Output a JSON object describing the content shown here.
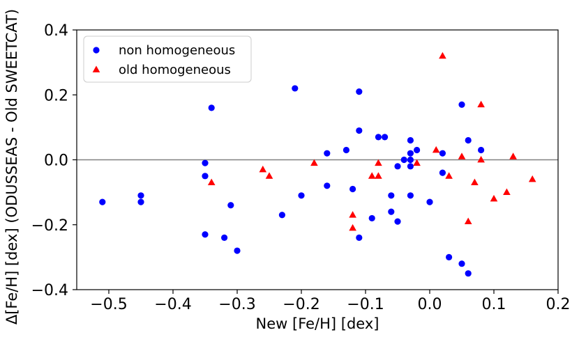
{
  "chart_data": {
    "type": "scatter",
    "title": "",
    "xlabel": "New [Fe/H] [dex]",
    "ylabel": "Δ[Fe/H] [dex] (ODUSSEAS - Old SWEETCAT)",
    "xlim": [
      -0.55,
      0.2
    ],
    "ylim": [
      -0.4,
      0.4
    ],
    "x_ticks": [
      -0.5,
      -0.4,
      -0.3,
      -0.2,
      -0.1,
      0.0,
      0.1,
      0.2
    ],
    "x_tick_labels": [
      "−0.5",
      "−0.4",
      "−0.3",
      "−0.2",
      "−0.1",
      "0.0",
      "0.1",
      "0.2"
    ],
    "y_ticks": [
      -0.4,
      -0.2,
      0.0,
      0.2,
      0.4
    ],
    "y_tick_labels": [
      "−0.4",
      "−0.2",
      "0.0",
      "0.2",
      "0.4"
    ],
    "reference_line_y": 0.0,
    "grid": false,
    "legend_position": "upper-left",
    "colors": {
      "reference_line": "#808080",
      "frame": "#000000"
    },
    "series": [
      {
        "name": "non homogeneous",
        "marker": "circle",
        "color": "#0000ff",
        "points": [
          [
            -0.51,
            -0.13
          ],
          [
            -0.45,
            -0.11
          ],
          [
            -0.45,
            -0.13
          ],
          [
            -0.35,
            -0.01
          ],
          [
            -0.35,
            -0.05
          ],
          [
            -0.35,
            -0.23
          ],
          [
            -0.34,
            0.16
          ],
          [
            -0.32,
            -0.24
          ],
          [
            -0.31,
            -0.14
          ],
          [
            -0.3,
            -0.28
          ],
          [
            -0.23,
            -0.17
          ],
          [
            -0.21,
            0.22
          ],
          [
            -0.2,
            -0.11
          ],
          [
            -0.16,
            0.02
          ],
          [
            -0.16,
            -0.08
          ],
          [
            -0.13,
            0.03
          ],
          [
            -0.12,
            -0.09
          ],
          [
            -0.11,
            0.21
          ],
          [
            -0.11,
            0.09
          ],
          [
            -0.11,
            -0.24
          ],
          [
            -0.09,
            -0.18
          ],
          [
            -0.08,
            0.07
          ],
          [
            -0.07,
            0.07
          ],
          [
            -0.06,
            -0.11
          ],
          [
            -0.06,
            -0.16
          ],
          [
            -0.05,
            -0.02
          ],
          [
            -0.05,
            -0.19
          ],
          [
            -0.04,
            0.0
          ],
          [
            -0.03,
            0.06
          ],
          [
            -0.03,
            0.02
          ],
          [
            -0.03,
            0.0
          ],
          [
            -0.03,
            -0.02
          ],
          [
            -0.03,
            -0.11
          ],
          [
            -0.02,
            0.03
          ],
          [
            0.0,
            -0.13
          ],
          [
            0.02,
            0.02
          ],
          [
            0.02,
            -0.04
          ],
          [
            0.03,
            -0.3
          ],
          [
            0.05,
            0.17
          ],
          [
            0.05,
            -0.32
          ],
          [
            0.06,
            0.06
          ],
          [
            0.06,
            -0.35
          ],
          [
            0.08,
            0.03
          ]
        ]
      },
      {
        "name": "old homogeneous",
        "marker": "triangle",
        "color": "#ff0000",
        "points": [
          [
            -0.34,
            -0.07
          ],
          [
            -0.26,
            -0.03
          ],
          [
            -0.25,
            -0.05
          ],
          [
            -0.18,
            -0.01
          ],
          [
            -0.12,
            -0.17
          ],
          [
            -0.12,
            -0.21
          ],
          [
            -0.09,
            -0.05
          ],
          [
            -0.08,
            -0.01
          ],
          [
            -0.08,
            -0.05
          ],
          [
            -0.02,
            -0.01
          ],
          [
            0.01,
            0.03
          ],
          [
            0.02,
            0.32
          ],
          [
            0.03,
            -0.05
          ],
          [
            0.05,
            0.01
          ],
          [
            0.06,
            -0.19
          ],
          [
            0.07,
            -0.07
          ],
          [
            0.08,
            0.17
          ],
          [
            0.08,
            0.0
          ],
          [
            0.1,
            -0.12
          ],
          [
            0.12,
            -0.1
          ],
          [
            0.13,
            0.01
          ],
          [
            0.16,
            -0.06
          ]
        ]
      }
    ]
  }
}
